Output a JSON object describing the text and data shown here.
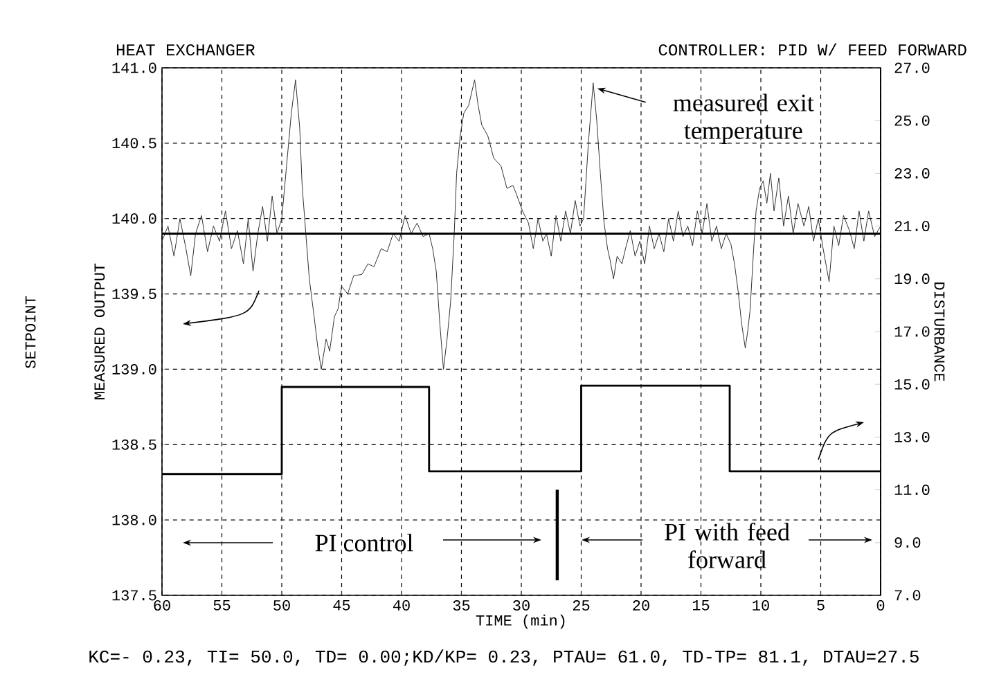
{
  "chart_data": {
    "type": "line",
    "title": "HEAT EXCHANGER",
    "subtitle": "CONTROLLER: PID W/ FEED FORWARD",
    "xlabel": "TIME (min)",
    "ylabel": "MEASURED OUTPUT",
    "y2label": "DISTURBANCE",
    "xlim": [
      60,
      0
    ],
    "xticks": [
      60,
      55,
      50,
      45,
      40,
      35,
      30,
      25,
      20,
      15,
      10,
      5,
      0
    ],
    "ylim": [
      137.5,
      141.0
    ],
    "yticks": [
      {
        "value": 137.5,
        "label": "137.5"
      },
      {
        "value": 138.0,
        "label": "138.0"
      },
      {
        "value": 138.5,
        "label": "138.5"
      },
      {
        "value": 139.0,
        "label": "139.0"
      },
      {
        "value": 139.5,
        "label": "139.5"
      },
      {
        "value": 140.0,
        "label": "140.0"
      },
      {
        "value": 140.5,
        "label": "140.5"
      },
      {
        "value": 141.0,
        "label": "141.0"
      }
    ],
    "y2lim": [
      7.0,
      27.0
    ],
    "y2ticks": [
      {
        "value": 7,
        "label": "7.0"
      },
      {
        "value": 9,
        "label": "9.0"
      },
      {
        "value": 11,
        "label": "11.0"
      },
      {
        "value": 13,
        "label": "13.0"
      },
      {
        "value": 15,
        "label": "15.0"
      },
      {
        "value": 17,
        "label": "17.0"
      },
      {
        "value": 19,
        "label": "19.0"
      },
      {
        "value": 21,
        "label": "21.0"
      },
      {
        "value": 23,
        "label": "23.0"
      },
      {
        "value": 25,
        "label": "25.0"
      },
      {
        "value": 27,
        "label": "27.0"
      }
    ],
    "grid": true,
    "marker": "none",
    "line_style": "solid",
    "series": [
      {
        "color": "#333333",
        "x": [
          60,
          59.5,
          59,
          58.5,
          58,
          57.6,
          57.2,
          56.7,
          56.2,
          55.7,
          55.2,
          54.7,
          54.2,
          53.7,
          53.2,
          52.8,
          52.4,
          52,
          51.6,
          51.2,
          50.8,
          50.4,
          50,
          49.6,
          49.2,
          48.85,
          48.5,
          48.3,
          47.7,
          47.3,
          47,
          46.7,
          46.3,
          46,
          45.6,
          45.3,
          45,
          44.5,
          44,
          43.3,
          42.8,
          42.3,
          41.7,
          41.2,
          40.7,
          40.2,
          39.7,
          39.2,
          38.7,
          38.2,
          37.7,
          37.4,
          37.1,
          36.8,
          36.5,
          36.2,
          35.9,
          35.6,
          35.4,
          35.1,
          34.8,
          34.4,
          33.9,
          33.6,
          33.3,
          32.8,
          32.3,
          31.7,
          31.2,
          30.7,
          30.4,
          29.9,
          29.4,
          29,
          28.6,
          28.2,
          27.9,
          27.5,
          27.1,
          26.7,
          26.3,
          25.9,
          25.5,
          25.1,
          24.8,
          24.4,
          24,
          23.7,
          23.4,
          23.1,
          22.8,
          22.6,
          22.3,
          22,
          21.6,
          21.3,
          20.9,
          20.5,
          20.1,
          19.7,
          19.3,
          18.9,
          18.5,
          18.1,
          17.7,
          17.3,
          16.9,
          16.5,
          16.1,
          15.7,
          15.3,
          14.9,
          14.5,
          14.1,
          13.7,
          13.3,
          12.9,
          12.5,
          12.2,
          11.9,
          11.6,
          11.3,
          11.1,
          10.9,
          10.6,
          10.4,
          10.1,
          9.8,
          9.5,
          9.2,
          8.9,
          8.5,
          8.1,
          7.7,
          7.3,
          6.9,
          6.4,
          6,
          5.6,
          5.2,
          4.8,
          4.3,
          3.9,
          3.5,
          3.1,
          2.6,
          2.2,
          1.8,
          1.4,
          1,
          0.5,
          0
        ],
        "values": [
          139.85,
          139.95,
          139.75,
          140.0,
          139.8,
          139.62,
          139.9,
          140.02,
          139.78,
          139.95,
          139.85,
          140.05,
          139.8,
          139.92,
          139.7,
          140.0,
          139.65,
          139.9,
          140.08,
          139.85,
          140.15,
          139.9,
          140.0,
          140.35,
          140.7,
          140.92,
          140.6,
          140.22,
          139.6,
          139.35,
          139.15,
          139.0,
          139.2,
          139.12,
          139.35,
          139.4,
          139.55,
          139.5,
          139.62,
          139.63,
          139.7,
          139.68,
          139.8,
          139.78,
          139.9,
          139.85,
          140.02,
          139.9,
          139.97,
          139.88,
          139.9,
          139.8,
          139.65,
          139.3,
          139.0,
          139.2,
          139.45,
          139.9,
          140.3,
          140.55,
          140.7,
          140.75,
          140.92,
          140.75,
          140.62,
          140.55,
          140.4,
          140.35,
          140.2,
          140.22,
          140.16,
          140.05,
          139.97,
          139.8,
          140.0,
          139.85,
          139.9,
          139.75,
          140.02,
          139.85,
          140.05,
          139.9,
          140.12,
          139.95,
          140.0,
          140.5,
          140.9,
          140.65,
          140.3,
          139.98,
          139.8,
          139.73,
          139.6,
          139.75,
          139.7,
          139.8,
          139.92,
          139.75,
          139.85,
          139.7,
          139.95,
          139.8,
          139.9,
          139.78,
          140.0,
          139.85,
          140.05,
          139.88,
          139.95,
          139.82,
          140.05,
          139.9,
          140.1,
          139.85,
          139.95,
          139.8,
          139.9,
          139.83,
          139.7,
          139.52,
          139.3,
          139.14,
          139.25,
          139.39,
          139.8,
          140.05,
          140.2,
          140.25,
          140.1,
          140.3,
          140.05,
          140.27,
          139.95,
          140.15,
          139.9,
          140.1,
          139.95,
          140.08,
          139.85,
          140.0,
          139.8,
          139.58,
          139.95,
          139.82,
          140.02,
          139.92,
          139.8,
          140.05,
          139.85,
          140.05,
          139.88,
          139.95
        ]
      },
      {
        "color": "#000000",
        "x": [
          60,
          0
        ],
        "values": [
          139.9,
          139.9
        ]
      },
      {
        "type": "step",
        "axis": "y2",
        "color": "#000000",
        "x": [
          60,
          50,
          37.7,
          25,
          12.6,
          0
        ],
        "values": [
          11.6,
          14.9,
          11.7,
          14.95,
          11.7,
          11.7
        ]
      }
    ],
    "ref_lines": [
      {
        "axis": "x",
        "value": 27,
        "color": "#000000"
      }
    ],
    "annotations": [
      {
        "text": "measured exit temperature",
        "x": 24,
        "y": 140.9
      },
      "PI control",
      "PI with feed forward",
      "KC=- 0.23, TI=   50.0, TD= 0.00;KD/KP= 0.23, PTAU= 61.0, TD-TP= 81.1, DTAU=27.5",
      "SETPOINT"
    ]
  }
}
